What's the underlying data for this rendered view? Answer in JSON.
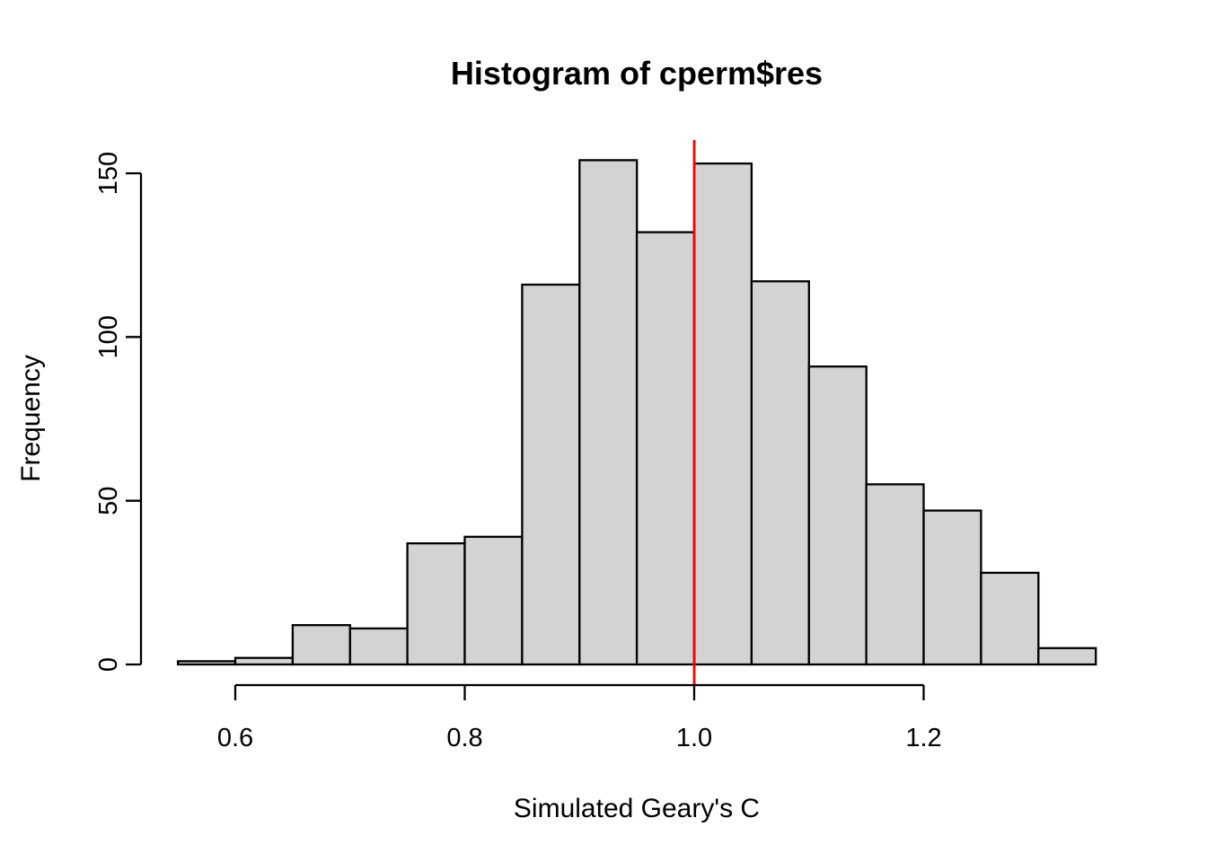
{
  "chart_data": {
    "type": "bar",
    "subtype": "histogram",
    "title": "Histogram of cperm$res",
    "xlabel": "Simulated Geary's C",
    "ylabel": "Frequency",
    "breaks": [
      0.55,
      0.6,
      0.65,
      0.7,
      0.75,
      0.8,
      0.85,
      0.9,
      0.95,
      1.0,
      1.05,
      1.1,
      1.15,
      1.2,
      1.25,
      1.3,
      1.35
    ],
    "counts": [
      1,
      2,
      12,
      11,
      37,
      39,
      116,
      154,
      132,
      153,
      117,
      91,
      55,
      47,
      28,
      5
    ],
    "x_ticks": [
      0.6,
      0.8,
      1.0,
      1.2
    ],
    "x_tick_labels": [
      "0.6",
      "0.8",
      "1.0",
      "1.2"
    ],
    "y_ticks": [
      0,
      50,
      100,
      150
    ],
    "y_tick_labels": [
      "0",
      "50",
      "100",
      "150"
    ],
    "xlim": [
      0.55,
      1.35
    ],
    "ylim": [
      0,
      150
    ],
    "grid": false,
    "legend": "none",
    "bar_fill": "#d3d3d3",
    "bar_border": "#000000",
    "axis_color": "#000000",
    "background": "#ffffff",
    "vline": {
      "x": 1.0,
      "color": "#ff0000"
    }
  }
}
